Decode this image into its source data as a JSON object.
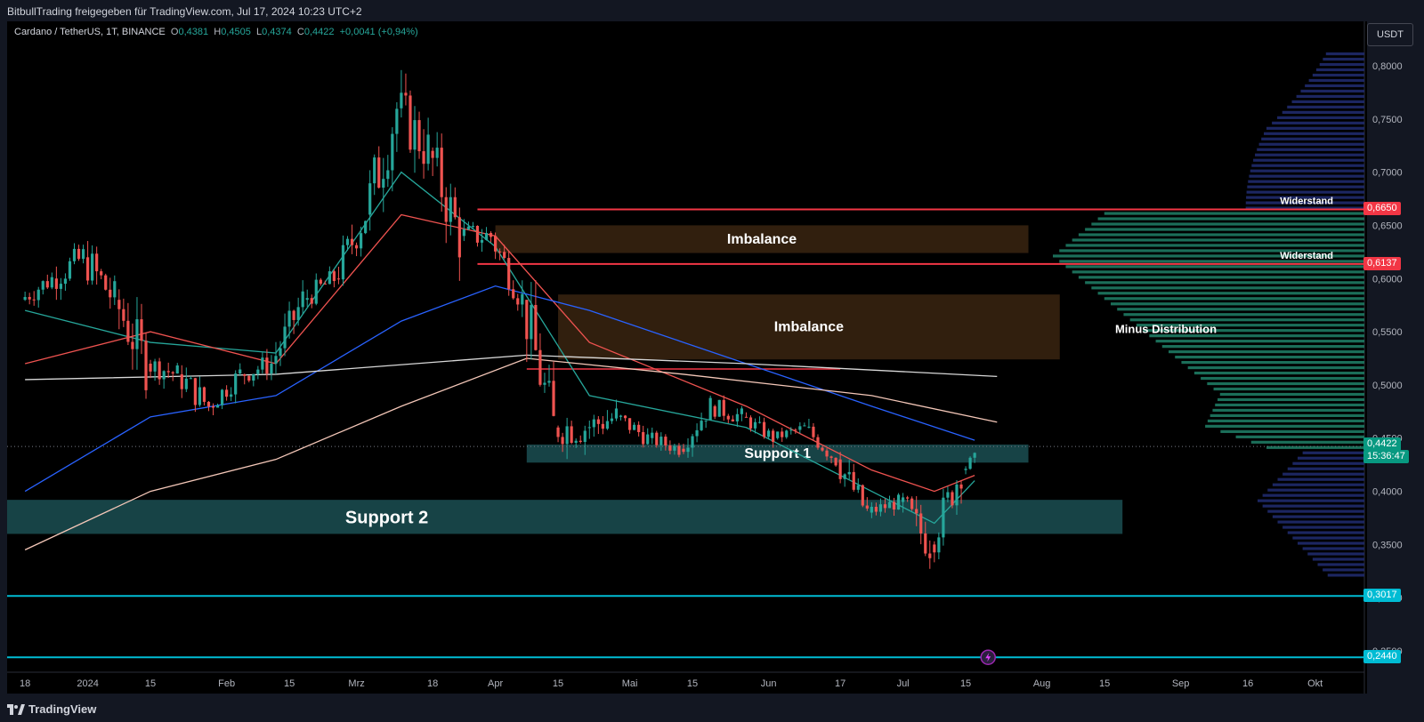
{
  "header": {
    "publisher_line": "BitbullTrading freigegeben für TradingView.com, Jul 17, 2024 10:23 UTC+2"
  },
  "symbol": {
    "name": "Cardano / TetherUS, 1T, BINANCE",
    "open_label": "O",
    "open": "0,4381",
    "high_label": "H",
    "high": "0,4505",
    "low_label": "L",
    "low": "0,4374",
    "close_label": "C",
    "close": "0,4422",
    "change": "+0,0041 (+0,94%)"
  },
  "currency_button": "USDT",
  "footer": {
    "brand": "TradingView"
  },
  "colors": {
    "up": "#26a69a",
    "down": "#ef5350",
    "resistance": "#f23645",
    "support_line": "#00bcd4",
    "zone_support": "#1b4f52",
    "zone_imbalance": "#3a2410",
    "profile_upper": "#1f2a6b",
    "profile_mid": "#1e7a63"
  },
  "chart_data": {
    "type": "candlestick",
    "symbol": "ADAUSDT",
    "interval": "1T",
    "y_axis": {
      "range": [
        0.23,
        0.82
      ],
      "ticks": [
        "0,8000",
        "0,7500",
        "0,7000",
        "0,6500",
        "0,6000",
        "0,5500",
        "0,5000",
        "0,4500",
        "0,4000",
        "0,3500",
        "0,3000",
        "0,2500"
      ]
    },
    "x_axis": {
      "tick_labels": [
        "18",
        "2024",
        "15",
        "Feb",
        "15",
        "Mrz",
        "18",
        "Apr",
        "15",
        "Mai",
        "15",
        "Jun",
        "17",
        "Jul",
        "15",
        "Aug",
        "15",
        "Sep",
        "16",
        "Okt"
      ]
    },
    "ohlc_approx": [
      [
        "2023-12-18",
        0.58,
        0.62,
        0.56,
        0.6
      ],
      [
        "2023-12-25",
        0.6,
        0.66,
        0.58,
        0.62
      ],
      [
        "2024-01-01",
        0.62,
        0.68,
        0.57,
        0.58
      ],
      [
        "2024-01-08",
        0.58,
        0.62,
        0.47,
        0.52
      ],
      [
        "2024-01-15",
        0.52,
        0.55,
        0.49,
        0.51
      ],
      [
        "2024-01-22",
        0.51,
        0.54,
        0.46,
        0.48
      ],
      [
        "2024-01-29",
        0.48,
        0.53,
        0.47,
        0.51
      ],
      [
        "2024-02-05",
        0.51,
        0.54,
        0.48,
        0.52
      ],
      [
        "2024-02-12",
        0.52,
        0.6,
        0.51,
        0.58
      ],
      [
        "2024-02-19",
        0.58,
        0.62,
        0.56,
        0.6
      ],
      [
        "2024-02-26",
        0.6,
        0.68,
        0.58,
        0.66
      ],
      [
        "2024-03-04",
        0.66,
        0.81,
        0.63,
        0.76
      ],
      [
        "2024-03-11",
        0.76,
        0.81,
        0.66,
        0.72
      ],
      [
        "2024-03-18",
        0.72,
        0.74,
        0.58,
        0.64
      ],
      [
        "2024-03-25",
        0.64,
        0.67,
        0.6,
        0.64
      ],
      [
        "2024-04-01",
        0.64,
        0.65,
        0.56,
        0.58
      ],
      [
        "2024-04-08",
        0.58,
        0.62,
        0.45,
        0.46
      ],
      [
        "2024-04-15",
        0.46,
        0.5,
        0.4,
        0.46
      ],
      [
        "2024-04-22",
        0.46,
        0.52,
        0.44,
        0.47
      ],
      [
        "2024-04-29",
        0.47,
        0.48,
        0.43,
        0.45
      ],
      [
        "2024-05-06",
        0.45,
        0.47,
        0.43,
        0.44
      ],
      [
        "2024-05-13",
        0.44,
        0.49,
        0.43,
        0.48
      ],
      [
        "2024-05-20",
        0.48,
        0.51,
        0.46,
        0.47
      ],
      [
        "2024-05-27",
        0.47,
        0.48,
        0.44,
        0.45
      ],
      [
        "2024-06-03",
        0.45,
        0.47,
        0.44,
        0.46
      ],
      [
        "2024-06-10",
        0.46,
        0.47,
        0.42,
        0.43
      ],
      [
        "2024-06-17",
        0.43,
        0.44,
        0.36,
        0.38
      ],
      [
        "2024-06-24",
        0.38,
        0.41,
        0.37,
        0.39
      ],
      [
        "2024-07-01",
        0.39,
        0.42,
        0.32,
        0.35
      ],
      [
        "2024-07-08",
        0.35,
        0.43,
        0.33,
        0.42
      ],
      [
        "2024-07-15",
        0.42,
        0.45,
        0.41,
        0.4422
      ]
    ],
    "moving_averages": [
      {
        "color": "#26a69a",
        "points": [
          [
            "2023-12-18",
            0.57
          ],
          [
            "2024-01-15",
            0.54
          ],
          [
            "2024-02-12",
            0.53
          ],
          [
            "2024-03-11",
            0.7
          ],
          [
            "2024-04-01",
            0.63
          ],
          [
            "2024-04-22",
            0.49
          ],
          [
            "2024-05-27",
            0.46
          ],
          [
            "2024-06-24",
            0.4
          ],
          [
            "2024-07-08",
            0.37
          ],
          [
            "2024-07-17",
            0.41
          ]
        ]
      },
      {
        "color": "#ef5350",
        "points": [
          [
            "2023-12-18",
            0.52
          ],
          [
            "2024-01-15",
            0.55
          ],
          [
            "2024-02-12",
            0.52
          ],
          [
            "2024-03-11",
            0.66
          ],
          [
            "2024-04-01",
            0.64
          ],
          [
            "2024-04-22",
            0.54
          ],
          [
            "2024-05-27",
            0.48
          ],
          [
            "2024-06-24",
            0.42
          ],
          [
            "2024-07-08",
            0.4
          ],
          [
            "2024-07-17",
            0.415
          ]
        ]
      },
      {
        "color": "#2962ff",
        "points": [
          [
            "2023-12-18",
            0.4
          ],
          [
            "2024-01-15",
            0.47
          ],
          [
            "2024-02-12",
            0.49
          ],
          [
            "2024-03-11",
            0.56
          ],
          [
            "2024-04-01",
            0.593
          ],
          [
            "2024-04-22",
            0.57
          ],
          [
            "2024-05-27",
            0.52
          ],
          [
            "2024-06-24",
            0.48
          ],
          [
            "2024-07-17",
            0.448
          ]
        ]
      },
      {
        "color": "#d8d8d8",
        "points": [
          [
            "2023-12-18",
            0.505
          ],
          [
            "2024-02-12",
            0.51
          ],
          [
            "2024-04-08",
            0.528
          ],
          [
            "2024-05-27",
            0.52
          ],
          [
            "2024-07-22",
            0.508
          ]
        ]
      },
      {
        "color": "#f4c7b8",
        "points": [
          [
            "2023-12-18",
            0.345
          ],
          [
            "2024-01-15",
            0.4
          ],
          [
            "2024-02-12",
            0.43
          ],
          [
            "2024-03-11",
            0.48
          ],
          [
            "2024-04-08",
            0.525
          ],
          [
            "2024-05-13",
            0.51
          ],
          [
            "2024-06-24",
            0.49
          ],
          [
            "2024-07-22",
            0.465
          ]
        ]
      }
    ],
    "zones": [
      {
        "label": "Imbalance",
        "from": "2024-04-01",
        "to": "2024-07-29",
        "low": 0.624,
        "high": 0.65,
        "color": "#3a2410"
      },
      {
        "label": "Imbalance",
        "from": "2024-04-15",
        "to": "2024-08-05",
        "low": 0.524,
        "high": 0.585,
        "color": "#3a2410"
      },
      {
        "label": "Support 1",
        "from": "2024-04-08",
        "to": "2024-07-29",
        "low": 0.427,
        "high": 0.444,
        "color": "#1b4f52"
      },
      {
        "label": "Support 2",
        "from": "2023-12-14",
        "to": "2024-08-19",
        "low": 0.36,
        "high": 0.392,
        "color": "#1b4f52"
      }
    ],
    "levels": [
      {
        "price": 0.665,
        "label": "0,6650",
        "text": "Widerstand",
        "color": "#f23645"
      },
      {
        "price": 0.6137,
        "label": "0,6137",
        "text": "Widerstand",
        "color": "#f23645"
      },
      {
        "price": 0.3017,
        "label": "0,3017",
        "text": "",
        "color": "#00bcd4"
      },
      {
        "price": 0.244,
        "label": "0,2440",
        "text": "",
        "color": "#00bcd4"
      }
    ],
    "last_price": {
      "label": "0,4422",
      "countdown": "15:36:47",
      "color": "#089981"
    },
    "volume_profile_label": "Minus Distribution",
    "annotations": [
      "Imbalance",
      "Imbalance",
      "Support 1",
      "Support 2",
      "Minus Distribution",
      "Widerstand",
      "Widerstand"
    ]
  }
}
